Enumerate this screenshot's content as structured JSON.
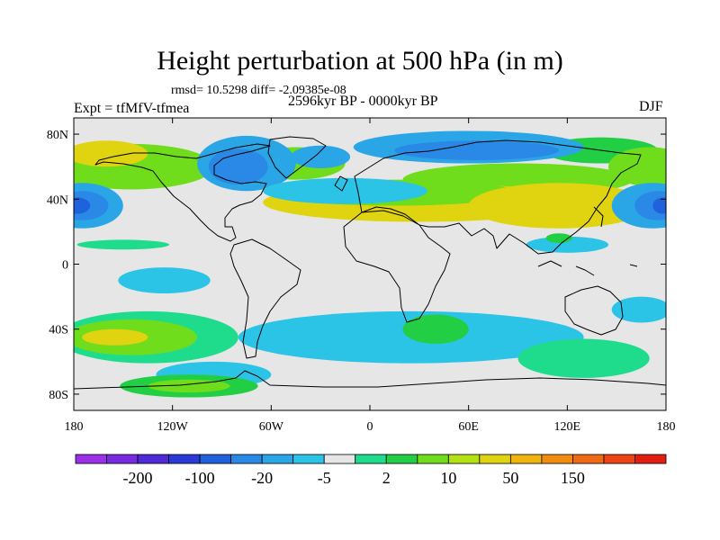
{
  "chart_data": {
    "type": "contour-map",
    "title": "Height perturbation at 500 hPa (in m)",
    "stats_line": "rmsd= 10.5298 diff= -2.09385e-08",
    "experiment_label": "Expt = tfMfV-tfmea",
    "period_label": "2596kyr BP - 0000kyr BP",
    "season_label": "DJF",
    "x_axis": {
      "range": [
        -180,
        180
      ],
      "ticks": [
        -180,
        -120,
        -60,
        0,
        60,
        120,
        180
      ],
      "tick_labels": [
        "180",
        "120W",
        "60W",
        "0",
        "60E",
        "120E",
        "180"
      ]
    },
    "y_axis": {
      "range": [
        -90,
        90
      ],
      "ticks": [
        80,
        40,
        0,
        -40,
        -80
      ],
      "tick_labels": [
        "80N",
        "40N",
        "0",
        "40S",
        "80S"
      ]
    },
    "colorbar": {
      "colors": [
        "#9b30e6",
        "#7a2ae0",
        "#4f2bd8",
        "#2b3ad6",
        "#1f62dc",
        "#2a88e6",
        "#2aa5e6",
        "#2bc4e6",
        "#e6e6e6",
        "#1fdc8c",
        "#22cf44",
        "#6fdc1c",
        "#b4e114",
        "#e0d310",
        "#f0b40e",
        "#f08c10",
        "#ee6a14",
        "#ec4414",
        "#e11e10"
      ],
      "tick_labels": [
        "-200",
        "-100",
        "-20",
        "-5",
        "2",
        "10",
        "50",
        "150"
      ]
    },
    "blobs": [
      {
        "lon": 90,
        "lat": 52,
        "rx": 70,
        "ry": 10,
        "value": 11
      },
      {
        "lon": 30,
        "lat": 38,
        "rx": 95,
        "ry": 12,
        "value": 60
      },
      {
        "lon": 15,
        "lat": 44,
        "rx": 75,
        "ry": 8,
        "value": 12
      },
      {
        "lon": 115,
        "lat": 36,
        "rx": 55,
        "ry": 14,
        "value": 55
      },
      {
        "lon": -145,
        "lat": 60,
        "rx": 50,
        "ry": 14,
        "value": 20
      },
      {
        "lon": -160,
        "lat": 68,
        "rx": 25,
        "ry": 8,
        "value": 55
      },
      {
        "lon": -45,
        "lat": 62,
        "rx": 30,
        "ry": 10,
        "value": 12
      },
      {
        "lon": 140,
        "lat": 70,
        "rx": 35,
        "ry": 8,
        "value": 10
      },
      {
        "lon": 170,
        "lat": 60,
        "rx": 25,
        "ry": 12,
        "value": 15
      },
      {
        "lon": 60,
        "lat": 72,
        "rx": 70,
        "ry": 10,
        "value": -12
      },
      {
        "lon": 65,
        "lat": 70,
        "rx": 50,
        "ry": 6,
        "value": -40
      },
      {
        "lon": -75,
        "lat": 62,
        "rx": 30,
        "ry": 17,
        "value": -15
      },
      {
        "lon": -80,
        "lat": 60,
        "rx": 18,
        "ry": 11,
        "value": -45
      },
      {
        "lon": -30,
        "lat": 66,
        "rx": 18,
        "ry": 7,
        "value": -12
      },
      {
        "lon": -15,
        "lat": 45,
        "rx": 50,
        "ry": 8,
        "value": -10
      },
      {
        "lon": -175,
        "lat": 36,
        "rx": 25,
        "ry": 14,
        "value": -12
      },
      {
        "lon": -175,
        "lat": 36,
        "rx": 16,
        "ry": 9,
        "value": -40
      },
      {
        "lon": -178,
        "lat": 36,
        "rx": 8,
        "ry": 5,
        "value": -100
      },
      {
        "lon": 172,
        "lat": 36,
        "rx": 25,
        "ry": 14,
        "value": -12
      },
      {
        "lon": 175,
        "lat": 36,
        "rx": 14,
        "ry": 9,
        "value": -40
      },
      {
        "lon": 178,
        "lat": 36,
        "rx": 6,
        "ry": 5,
        "value": -100
      },
      {
        "lon": -150,
        "lat": 12,
        "rx": 28,
        "ry": 3,
        "value": 5
      },
      {
        "lon": 40,
        "lat": 15,
        "rx": 25,
        "ry": 3,
        "value": -4
      },
      {
        "lon": 120,
        "lat": 12,
        "rx": 25,
        "ry": 5,
        "value": -5
      },
      {
        "lon": 115,
        "lat": 16,
        "rx": 8,
        "ry": 3,
        "value": 6
      },
      {
        "lon": -125,
        "lat": -10,
        "rx": 28,
        "ry": 8,
        "value": -5
      },
      {
        "lon": 60,
        "lat": -8,
        "rx": 18,
        "ry": 4,
        "value": -4
      },
      {
        "lon": 165,
        "lat": -28,
        "rx": 18,
        "ry": 8,
        "value": -5
      },
      {
        "lon": -135,
        "lat": -45,
        "rx": 55,
        "ry": 16,
        "value": 5
      },
      {
        "lon": -145,
        "lat": -45,
        "rx": 40,
        "ry": 11,
        "value": 12
      },
      {
        "lon": -155,
        "lat": -45,
        "rx": 20,
        "ry": 5,
        "value": 55
      },
      {
        "lon": 25,
        "lat": -45,
        "rx": 105,
        "ry": 16,
        "value": -5
      },
      {
        "lon": 40,
        "lat": -40,
        "rx": 20,
        "ry": 9,
        "value": 6
      },
      {
        "lon": 130,
        "lat": -58,
        "rx": 40,
        "ry": 12,
        "value": 4
      },
      {
        "lon": -95,
        "lat": -68,
        "rx": 35,
        "ry": 8,
        "value": -5
      },
      {
        "lon": -110,
        "lat": -75,
        "rx": 42,
        "ry": 7,
        "value": 6
      },
      {
        "lon": -110,
        "lat": -75,
        "rx": 25,
        "ry": 4,
        "value": 12
      }
    ]
  }
}
